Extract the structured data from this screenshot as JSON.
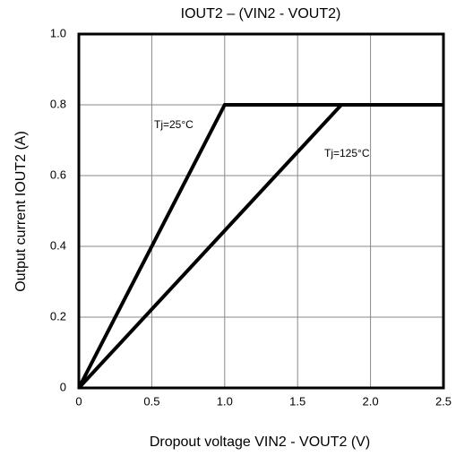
{
  "chart_data": {
    "type": "line",
    "title": "IOUT2 – (VIN2 - VOUT2)",
    "x_label": "Dropout voltage  VIN2 - VOUT2 (V)",
    "y_label": "Output current  IOUT2  (A)",
    "series": [
      {
        "name": "Tj=25°C",
        "color": "#000000",
        "x": [
          0,
          1,
          2.5
        ],
        "values": [
          0,
          0.8,
          0.8
        ]
      },
      {
        "name": "Tj=125°C",
        "color": "#000000",
        "x": [
          0,
          1.8,
          2.5
        ],
        "values": [
          0,
          0.8,
          0.8
        ]
      }
    ],
    "xlim": [
      0,
      2.5
    ],
    "xticks": [
      0,
      0.5,
      {
        "value": 1,
        "label": "1.0"
      },
      1.5,
      {
        "value": 2,
        "label": "2.0"
      },
      2.5
    ],
    "ylim": [
      0,
      1
    ],
    "yticks": [
      0,
      0.2,
      0.4,
      0.6,
      0.8,
      {
        "value": 1,
        "label": "1.0"
      }
    ],
    "grid": true
  }
}
